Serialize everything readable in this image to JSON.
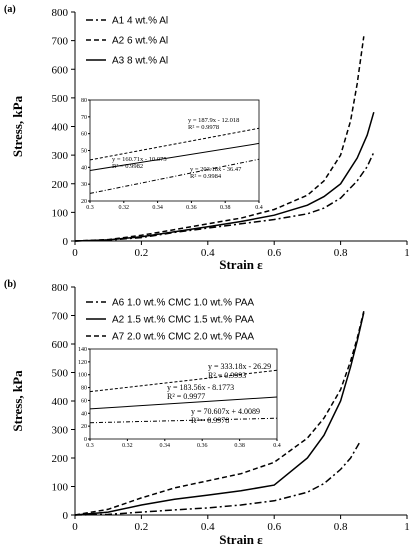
{
  "chart_data": [
    {
      "type": "line",
      "panel_label": "(a)",
      "xlabel": "Strain ε",
      "ylabel": "Stress, kPa",
      "xlim": [
        0,
        1
      ],
      "ylim": [
        0,
        800
      ],
      "xticks": [
        "0",
        "0.2",
        "0.4",
        "0.6",
        "0.8",
        "1"
      ],
      "yticks": [
        "0",
        "100",
        "200",
        "300",
        "400",
        "500",
        "600",
        "700",
        "800"
      ],
      "grid": false,
      "legend": "top-left",
      "series": [
        {
          "name": "A1  4 wt.% Al",
          "style": "dash-dot",
          "x": [
            0.0,
            0.1,
            0.2,
            0.3,
            0.4,
            0.5,
            0.6,
            0.7,
            0.75,
            0.8,
            0.85,
            0.88,
            0.9
          ],
          "y": [
            0,
            3,
            12,
            30,
            45,
            60,
            75,
            95,
            115,
            150,
            210,
            260,
            310
          ]
        },
        {
          "name": "A2  6 wt.% Al",
          "style": "dashed",
          "x": [
            0.0,
            0.1,
            0.2,
            0.3,
            0.4,
            0.5,
            0.6,
            0.7,
            0.75,
            0.8,
            0.83,
            0.85,
            0.87
          ],
          "y": [
            0,
            5,
            20,
            40,
            60,
            80,
            110,
            160,
            210,
            300,
            420,
            550,
            715
          ]
        },
        {
          "name": "A3  8 wt.% Al",
          "style": "solid",
          "x": [
            0.0,
            0.1,
            0.2,
            0.3,
            0.4,
            0.5,
            0.6,
            0.7,
            0.75,
            0.8,
            0.85,
            0.88,
            0.9
          ],
          "y": [
            0,
            4,
            15,
            32,
            50,
            68,
            90,
            125,
            155,
            200,
            290,
            370,
            450
          ]
        }
      ],
      "inset": {
        "xlim": [
          0.3,
          0.4
        ],
        "ylim": [
          20,
          80
        ],
        "xticks": [
          "0.3",
          "0.32",
          "0.34",
          "0.36",
          "0.38",
          "0.4"
        ],
        "yticks": [
          "20",
          "30",
          "40",
          "50",
          "60",
          "70",
          "80"
        ],
        "series": [
          {
            "style": "dashed",
            "x": [
              0.3,
              0.4
            ],
            "y": [
              44.4,
              63.2
            ]
          },
          {
            "style": "solid",
            "x": [
              0.3,
              0.4
            ],
            "y": [
              38.1,
              54.2
            ]
          },
          {
            "style": "dash-dot",
            "x": [
              0.3,
              0.4
            ],
            "y": [
              24.5,
              44.8
            ]
          }
        ],
        "annotations": [
          {
            "lines": [
              "y = 187.9x - 12.018",
              "R² = 0.9978"
            ]
          },
          {
            "lines": [
              "y = 160.71x - 10.075",
              "R² = 0.9982"
            ]
          },
          {
            "lines": [
              "y = 203.18x - 36.47",
              "R² = 0.9984"
            ]
          }
        ]
      }
    },
    {
      "type": "line",
      "panel_label": "(b)",
      "xlabel": "Strain ε",
      "ylabel": "Stress, kPa",
      "xlim": [
        0,
        1
      ],
      "ylim": [
        0,
        800
      ],
      "xticks": [
        "0",
        "0.2",
        "0.4",
        "0.6",
        "0.8",
        "1"
      ],
      "yticks": [
        "0",
        "100",
        "200",
        "300",
        "400",
        "500",
        "600",
        "700",
        "800"
      ],
      "grid": false,
      "legend": "top-left",
      "series": [
        {
          "name": "A6   1.0 wt.% CMC 1.0 wt.% PAA",
          "style": "dash-dot",
          "x": [
            0.0,
            0.1,
            0.2,
            0.3,
            0.4,
            0.5,
            0.6,
            0.7,
            0.75,
            0.8,
            0.83,
            0.85,
            0.86
          ],
          "y": [
            0,
            2,
            10,
            18,
            25,
            35,
            50,
            80,
            110,
            160,
            200,
            240,
            260
          ]
        },
        {
          "name": "A2   1.5 wt.% CMC 1.5 wt.% PAA",
          "style": "solid",
          "x": [
            0.0,
            0.1,
            0.2,
            0.3,
            0.4,
            0.5,
            0.6,
            0.7,
            0.75,
            0.8,
            0.83,
            0.85,
            0.87
          ],
          "y": [
            0,
            10,
            35,
            55,
            70,
            85,
            105,
            200,
            280,
            400,
            520,
            610,
            710
          ]
        },
        {
          "name": "A7   2.0 wt.% CMC 2.0 wt.% PAA",
          "style": "dashed",
          "x": [
            0.0,
            0.1,
            0.2,
            0.3,
            0.4,
            0.5,
            0.6,
            0.7,
            0.75,
            0.8,
            0.83,
            0.85,
            0.87
          ],
          "y": [
            0,
            20,
            60,
            95,
            120,
            145,
            185,
            270,
            340,
            440,
            540,
            620,
            715
          ]
        }
      ],
      "inset": {
        "xlim": [
          0.3,
          0.4
        ],
        "ylim": [
          0,
          140
        ],
        "xticks": [
          "0.3",
          "0.32",
          "0.34",
          "0.36",
          "0.38",
          "0.4"
        ],
        "yticks": [
          "0",
          "20",
          "40",
          "60",
          "80",
          "100",
          "120",
          "140"
        ],
        "series": [
          {
            "style": "dashed",
            "x": [
              0.3,
              0.4
            ],
            "y": [
              73.7,
              106.9
            ]
          },
          {
            "style": "solid",
            "x": [
              0.3,
              0.4
            ],
            "y": [
              46.9,
              65.3
            ]
          },
          {
            "style": "dash-dot",
            "x": [
              0.3,
              0.4
            ],
            "y": [
              25.3,
              32.3
            ]
          }
        ],
        "annotations": [
          {
            "lines": [
              "y = 333.18x - 26.29",
              "R² = 0.9993"
            ]
          },
          {
            "lines": [
              "y = 183.56x - 8.1773",
              "R² = 0.9977"
            ]
          },
          {
            "lines": [
              "y = 70.607x + 4.0089",
              "R² = 0.9978"
            ]
          }
        ]
      }
    }
  ]
}
